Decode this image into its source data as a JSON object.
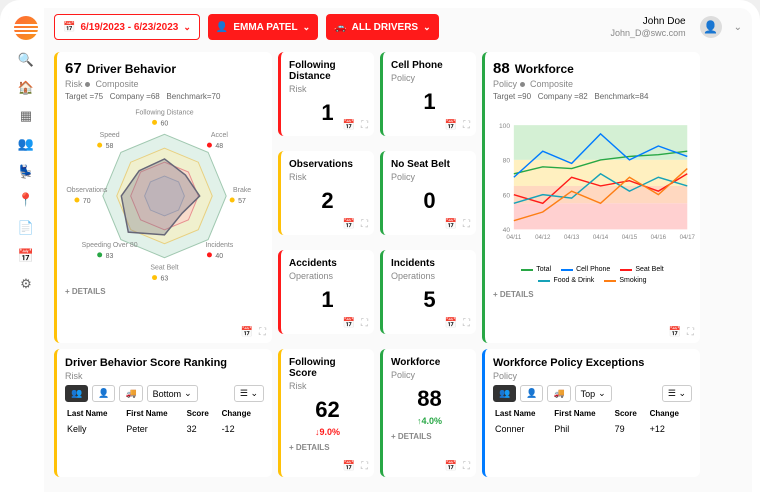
{
  "topbar": {
    "dateRange": "6/19/2023 - 6/23/2023",
    "user": "EMMA PATEL",
    "drivers": "ALL DRIVERS"
  },
  "profile": {
    "name": "John Doe",
    "email": "John_D@swc.com"
  },
  "driverBehavior": {
    "score": "67",
    "title": "Driver Behavior",
    "sub1": "Risk",
    "sub2": "Composite",
    "target": "Target =75",
    "company": "Company =68",
    "bench": "Benchmark=70",
    "axes": [
      {
        "name": "Following Distance",
        "val": "60",
        "color": "#ffc107"
      },
      {
        "name": "Accel",
        "val": "48",
        "color": "#ff1a1a"
      },
      {
        "name": "Brake",
        "val": "57",
        "color": "#ffc107"
      },
      {
        "name": "Incidents",
        "val": "40",
        "color": "#ff1a1a"
      },
      {
        "name": "Seat Belt",
        "val": "63",
        "color": "#ffc107"
      },
      {
        "name": "Speeding Over 80",
        "val": "83",
        "color": "#28a745"
      },
      {
        "name": "Observations",
        "val": "70",
        "color": "#ffc107"
      },
      {
        "name": "Speed",
        "val": "58",
        "color": "#ffc107"
      }
    ],
    "details": "+ DETAILS"
  },
  "smallCards": [
    {
      "title": "Following Distance",
      "sub": "Risk",
      "val": "1",
      "color": "red"
    },
    {
      "title": "Cell Phone",
      "sub": "Policy",
      "val": "1",
      "color": "green"
    },
    {
      "title": "Observations",
      "sub": "Risk",
      "val": "2",
      "color": "yellow"
    },
    {
      "title": "No Seat Belt",
      "sub": "Policy",
      "val": "0",
      "color": "green"
    },
    {
      "title": "Accidents",
      "sub": "Operations",
      "val": "1",
      "color": "red"
    },
    {
      "title": "Incidents",
      "sub": "Operations",
      "val": "5",
      "color": "green"
    }
  ],
  "workforce": {
    "score": "88",
    "title": "Workforce",
    "sub1": "Policy",
    "sub2": "Composite",
    "target": "Target =90",
    "company": "Company =82",
    "bench": "Benchmark=84",
    "xlabels": [
      "04/11",
      "04/12",
      "04/13",
      "04/14",
      "04/15",
      "04/16",
      "04/17"
    ],
    "ylabels": [
      "40",
      "60",
      "80",
      "100"
    ],
    "series": [
      {
        "name": "Total",
        "color": "#28a745",
        "pts": [
          72,
          76,
          75,
          80,
          82,
          83,
          85
        ]
      },
      {
        "name": "Cell Phone",
        "color": "#007bff",
        "pts": [
          70,
          85,
          78,
          95,
          80,
          88,
          82
        ]
      },
      {
        "name": "Seat Belt",
        "color": "#ff1a1a",
        "pts": [
          60,
          55,
          70,
          65,
          68,
          62,
          72
        ]
      },
      {
        "name": "Food & Drink",
        "color": "#17a2b8",
        "pts": [
          55,
          60,
          58,
          72,
          62,
          70,
          65
        ]
      },
      {
        "name": "Smoking",
        "color": "#fd7e14",
        "pts": [
          45,
          50,
          62,
          55,
          70,
          60,
          75
        ]
      }
    ],
    "details": "+ DETAILS"
  },
  "ranking": {
    "title": "Driver Behavior Score Ranking",
    "sub": "Risk",
    "dropdown": "Bottom",
    "cols": [
      "Last Name",
      "First Name",
      "Score",
      "Change"
    ],
    "row": [
      "Kelly",
      "Peter",
      "32",
      "-12"
    ]
  },
  "followingScore": {
    "title": "Following Score",
    "sub": "Risk",
    "val": "62",
    "delta": "9.0%",
    "dir": "down",
    "details": "+ DETAILS"
  },
  "workforceScore": {
    "title": "Workforce",
    "sub": "Policy",
    "val": "88",
    "delta": "4.0%",
    "dir": "up",
    "details": "+ DETAILS"
  },
  "exceptions": {
    "title": "Workforce Policy Exceptions",
    "sub": "Policy",
    "dropdown": "Top",
    "cols": [
      "Last Name",
      "First Name",
      "Score",
      "Change"
    ],
    "row": [
      "Conner",
      "Phil",
      "79",
      "+12"
    ]
  },
  "colors": {
    "bg": "#fafafa",
    "card": "#ffffff",
    "red": "#ff1a1a",
    "yellow": "#ffc107",
    "green": "#28a745",
    "blue": "#007bff"
  }
}
